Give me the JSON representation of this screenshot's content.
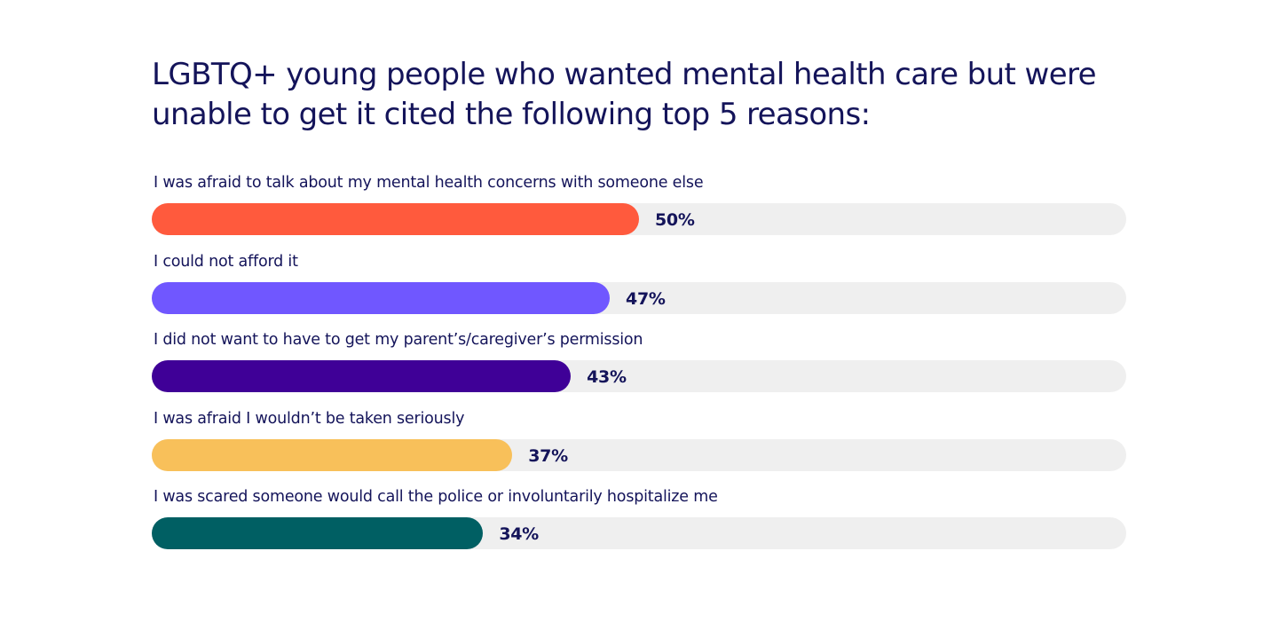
{
  "chart_data": {
    "type": "bar",
    "orientation": "horizontal",
    "title": "LGBTQ+ young people who wanted mental health care but were unable to get it cited the following top 5 reasons:",
    "categories": [
      "I was afraid to talk about my mental health concerns with someone else",
      "I could not afford it",
      "I did not want to have to get my parent’s/caregiver’s permission",
      "I was afraid I wouldn’t be taken seriously",
      "I was scared someone would call the police or involuntarily hospitalize me"
    ],
    "values": [
      50,
      47,
      43,
      37,
      34
    ],
    "value_labels": [
      "50%",
      "47%",
      "43%",
      "37%",
      "34%"
    ],
    "colors": [
      "#ff5a3d",
      "#7057ff",
      "#3f0097",
      "#f8c05a",
      "#005f63"
    ],
    "xlim": [
      0,
      100
    ],
    "track_color": "#efefef",
    "text_color": "#14145a"
  }
}
